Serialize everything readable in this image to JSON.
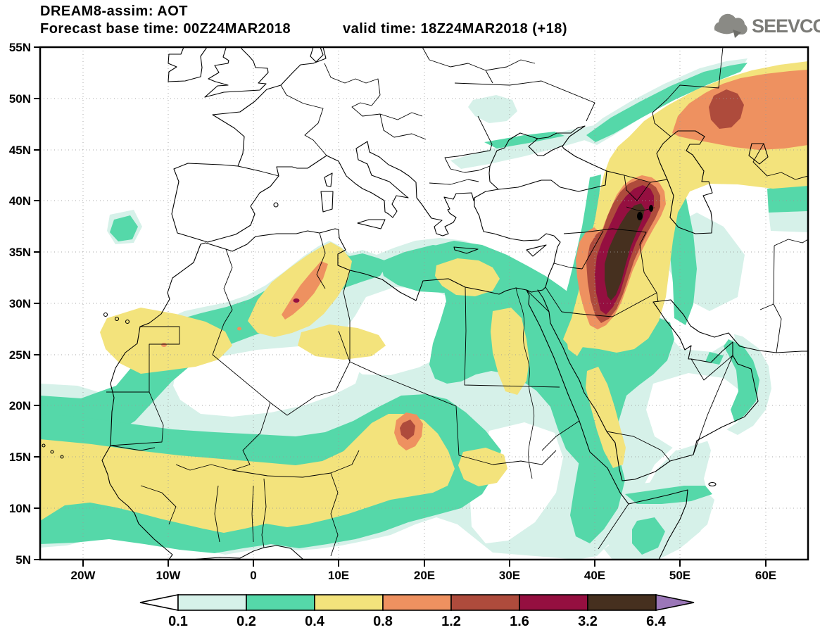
{
  "header": {
    "title": "DREAM8-assim: AOT",
    "base_time": "Forecast base time: 00Z24MAR2018",
    "valid_time": "valid time: 18Z24MAR2018 (+18)"
  },
  "logo": {
    "text": "SEEVCCC",
    "color": "#7b7b77",
    "icon": "cloud-arrow-icon"
  },
  "map": {
    "lat_ticks": [
      "55N",
      "50N",
      "45N",
      "40N",
      "35N",
      "30N",
      "25N",
      "20N",
      "15N",
      "10N",
      "5N"
    ],
    "lon_ticks": [
      "20W",
      "10W",
      "0",
      "10E",
      "20E",
      "30E",
      "40E",
      "50E",
      "60E"
    ]
  },
  "colorbar": {
    "levels": [
      "0.1",
      "0.2",
      "0.4",
      "0.8",
      "1.2",
      "1.6",
      "3.2",
      "6.4"
    ],
    "segment_colors": [
      "#d6f1e9",
      "#55d8a9",
      "#f3e37c",
      "#ee9160",
      "#ae4b3c",
      "#950f40",
      "#46301f"
    ],
    "below_min_color": "#ffffff",
    "above_max_color": "#9b77b8"
  },
  "palette": {
    "c01": "#d6f1e9",
    "c02": "#55d8a9",
    "c04": "#f3e37c",
    "c08": "#ee9160",
    "c12": "#ae4b3c",
    "c16": "#950f40",
    "c32": "#46301f",
    "c64": "#9b77b8",
    "grid": "#aaaaaa",
    "frame": "#000000"
  }
}
